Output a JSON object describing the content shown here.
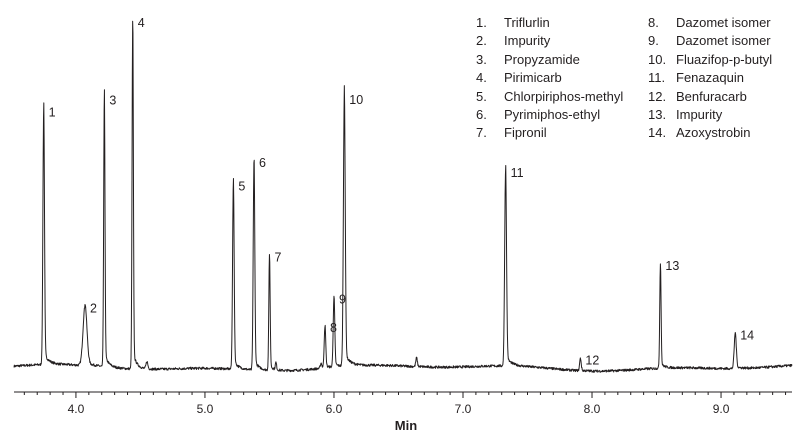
{
  "chart_data": {
    "type": "line",
    "xlabel": "Min",
    "xlim": [
      3.52,
      9.55
    ],
    "ylim": [
      0,
      100
    ],
    "xticks": [
      {
        "value": 4.0,
        "label": "4.0"
      },
      {
        "value": 5.0,
        "label": "5.0"
      },
      {
        "value": 6.0,
        "label": "6.0"
      },
      {
        "value": 7.0,
        "label": "7.0"
      },
      {
        "value": 8.0,
        "label": "8.0"
      },
      {
        "value": 9.0,
        "label": "9.0"
      }
    ],
    "baseline": 3.5,
    "peaks": [
      {
        "label": "1",
        "rt": 3.75,
        "height": 73,
        "width": 0.006
      },
      {
        "label": "2",
        "rt": 4.07,
        "height": 17,
        "width": 0.015
      },
      {
        "label": "3",
        "rt": 4.22,
        "height": 77,
        "width": 0.005
      },
      {
        "label": "4",
        "rt": 4.44,
        "height": 100,
        "width": 0.005
      },
      {
        "label": "5",
        "rt": 5.22,
        "height": 53,
        "width": 0.006
      },
      {
        "label": "6",
        "rt": 5.38,
        "height": 60,
        "width": 0.006
      },
      {
        "label": "7",
        "rt": 5.5,
        "height": 33,
        "width": 0.005
      },
      {
        "label": "8",
        "rt": 5.93,
        "height": 12,
        "width": 0.006
      },
      {
        "label": "9",
        "rt": 6.0,
        "height": 20,
        "width": 0.006
      },
      {
        "label": "10",
        "rt": 6.08,
        "height": 77,
        "width": 0.007
      },
      {
        "label": "11",
        "rt": 7.33,
        "height": 56,
        "width": 0.007
      },
      {
        "label": "12",
        "rt": 7.91,
        "height": 3.5,
        "width": 0.006
      },
      {
        "label": "13",
        "rt": 8.53,
        "height": 30,
        "width": 0.005
      },
      {
        "label": "14",
        "rt": 9.11,
        "height": 10,
        "width": 0.008
      }
    ],
    "minor_peaks": [
      {
        "rt": 4.55,
        "height": 2,
        "width": 0.007
      },
      {
        "rt": 5.55,
        "height": 2,
        "width": 0.005
      },
      {
        "rt": 5.9,
        "height": 1.5,
        "width": 0.006
      },
      {
        "rt": 6.64,
        "height": 2.5,
        "width": 0.006
      }
    ],
    "legend": [
      {
        "num": "1.",
        "name": "Triflurlin"
      },
      {
        "num": "2.",
        "name": "Impurity"
      },
      {
        "num": "3.",
        "name": "Propyzamide"
      },
      {
        "num": "4.",
        "name": "Pirimicarb"
      },
      {
        "num": "5.",
        "name": "Chlorpiriphos-methyl"
      },
      {
        "num": "6.",
        "name": "Pyrimiphos-ethyl"
      },
      {
        "num": "7.",
        "name": "Fipronil"
      },
      {
        "num": "8.",
        "name": "Dazomet isomer"
      },
      {
        "num": "9.",
        "name": "Dazomet isomer"
      },
      {
        "num": "10.",
        "name": "Fluazifop-p-butyl"
      },
      {
        "num": "11.",
        "name": "Fenazaquin"
      },
      {
        "num": "12.",
        "name": "Benfuracarb"
      },
      {
        "num": "13.",
        "name": "Impurity"
      },
      {
        "num": "14.",
        "name": "Azoxystrobin"
      }
    ],
    "colors": {
      "trace": "#231f20",
      "axis": "#231f20",
      "background": "#ffffff"
    }
  }
}
